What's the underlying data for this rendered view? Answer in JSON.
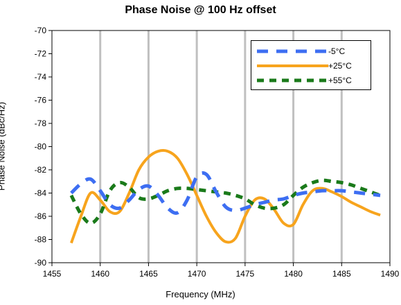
{
  "chart_data": {
    "type": "line",
    "title": "Phase Noise @ 100 Hz offset",
    "xlabel": "Frequency (MHz)",
    "ylabel": "Phase Noise (dBc/Hz)",
    "xlim": [
      1455,
      1490
    ],
    "ylim": [
      -90,
      -70
    ],
    "xticks": [
      1455,
      1460,
      1465,
      1470,
      1475,
      1480,
      1485,
      1490
    ],
    "yticks": [
      -90,
      -88,
      -86,
      -84,
      -82,
      -80,
      -78,
      -76,
      -74,
      -72,
      -70
    ],
    "grid": "vertical",
    "legend_position": "top-right",
    "series": [
      {
        "name": "-5°C",
        "color": "#3d6ef2",
        "style": "dashed",
        "x": [
          1457,
          1458,
          1459,
          1460,
          1461,
          1462,
          1463,
          1464,
          1465,
          1466,
          1467,
          1468,
          1469,
          1470,
          1471,
          1472,
          1473,
          1474,
          1475,
          1476,
          1477,
          1478,
          1479,
          1480,
          1481,
          1482,
          1483,
          1484,
          1485,
          1486,
          1487,
          1488,
          1489
        ],
        "y": [
          -84.0,
          -83.2,
          -82.8,
          -83.8,
          -85.0,
          -85.3,
          -84.6,
          -83.7,
          -83.4,
          -84.2,
          -85.3,
          -85.7,
          -84.6,
          -82.6,
          -82.4,
          -83.9,
          -85.2,
          -85.5,
          -85.3,
          -85.0,
          -84.8,
          -84.6,
          -84.5,
          -84.2,
          -84.0,
          -83.9,
          -83.8,
          -83.8,
          -83.8,
          -83.9,
          -84.0,
          -84.1,
          -84.2
        ]
      },
      {
        "name": "+25°C",
        "color": "#f7a41d",
        "style": "solid",
        "x": [
          1457,
          1458,
          1459,
          1460,
          1461,
          1462,
          1463,
          1464,
          1465,
          1466,
          1467,
          1468,
          1469,
          1470,
          1471,
          1472,
          1473,
          1474,
          1475,
          1476,
          1477,
          1478,
          1479,
          1480,
          1481,
          1482,
          1483,
          1484,
          1485,
          1486,
          1487,
          1488,
          1489
        ],
        "y": [
          -88.3,
          -86.0,
          -84.0,
          -84.6,
          -85.6,
          -85.6,
          -84.0,
          -82.0,
          -80.9,
          -80.4,
          -80.4,
          -81.0,
          -82.4,
          -84.2,
          -86.0,
          -87.4,
          -88.2,
          -87.9,
          -86.0,
          -84.6,
          -84.5,
          -85.4,
          -86.6,
          -86.7,
          -85.0,
          -83.8,
          -83.6,
          -83.9,
          -84.3,
          -84.8,
          -85.2,
          -85.6,
          -85.9
        ]
      },
      {
        "name": "+55°C",
        "color": "#1a7a1a",
        "style": "dashed",
        "x": [
          1457,
          1458,
          1459,
          1460,
          1461,
          1462,
          1463,
          1464,
          1465,
          1466,
          1467,
          1468,
          1469,
          1470,
          1471,
          1472,
          1473,
          1474,
          1475,
          1476,
          1477,
          1478,
          1479,
          1480,
          1481,
          1482,
          1483,
          1484,
          1485,
          1486,
          1487,
          1488,
          1489
        ],
        "y": [
          -84.2,
          -85.8,
          -86.6,
          -85.8,
          -83.8,
          -83.1,
          -83.5,
          -84.4,
          -84.5,
          -84.2,
          -83.8,
          -83.6,
          -83.6,
          -83.7,
          -83.8,
          -83.9,
          -84.0,
          -84.2,
          -84.5,
          -85.0,
          -85.3,
          -85.3,
          -85.0,
          -84.2,
          -83.5,
          -83.1,
          -82.9,
          -83.0,
          -83.1,
          -83.3,
          -83.6,
          -83.9,
          -84.2
        ]
      }
    ]
  }
}
